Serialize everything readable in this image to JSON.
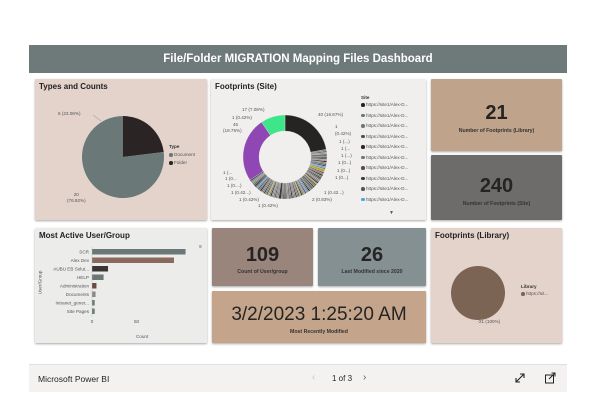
{
  "dashboard": {
    "title": "File/Folder MIGRATION Mapping Files Dashboard"
  },
  "types_card": {
    "title": "Types and Counts",
    "legend_title": "Type",
    "legend_items": [
      {
        "label": "Document",
        "color": "#6b7878"
      },
      {
        "label": "Folder",
        "color": "#2b2424"
      }
    ],
    "folder_label": "6 (23.08%)",
    "document_label": "20\n(76.92%)"
  },
  "footprints_site_card": {
    "title": "Footprints (Site)",
    "legend_title": "Site",
    "legend_items": [
      "https://site1/Alex-D...",
      "https://site1/Alex-D...",
      "https://site1/Alex-D...",
      "https://site1/Alex-D...",
      "https://site1/Alex-D...",
      "https://site1/Alex-D...",
      "https://site1/Alex-D...",
      "https://site1/Alex-D...",
      "https://site1/Alex-D...",
      "https://site1/Alex-D..."
    ],
    "legend_colors": [
      "#252423",
      "#6b7878",
      "#6b7878",
      "#5a4a4a",
      "#2b2424",
      "#6b7878",
      "#5a4a4a",
      "#3a3a3a",
      "#555555",
      "#4aa3df"
    ],
    "labels": {
      "top_a": "17 (7.08%)",
      "top_b": "1 (0.42%)",
      "left_a": "45",
      "left_b": "(18.75%)",
      "right_a": "40 (16.67%)",
      "right_b": "1",
      "right_c": "(0.42%)",
      "right_d": "1 (...)",
      "right_e": "1 (...",
      "bottom_a": "1 (0.42%)",
      "bottom_b": "2 (0.83%)",
      "bottom_c": "1 (0.42...)",
      "bottom_d": "1 (0.42%)",
      "left_c": "1 (...",
      "left_d": "1 (0...",
      "left_e": "1 (0....)",
      "right_f": "1 (...)",
      "right_g": "1 (0...)",
      "right_h": "1 (0...)",
      "right_i": "1 (0...)",
      "right_j": "1 (0.42...)"
    }
  },
  "kpi_library": {
    "value": "21",
    "caption": "Number of Footprints (Library)",
    "color": "#bfa38b"
  },
  "kpi_site": {
    "value": "240",
    "caption": "Number of Footprints (Site)",
    "color": "#6e6c6a"
  },
  "most_active_card": {
    "title": "Most Active User/Group",
    "y_axis_label": "User/Group",
    "x_axis_label": "Count",
    "x_ticks": [
      "0",
      "50"
    ],
    "bars": [
      {
        "label": "SCR",
        "value": 105,
        "color": "#6b7878"
      },
      {
        "label": "Alex Dev",
        "value": 92,
        "color": "#8a6a5e"
      },
      {
        "label": "AUBU EB Solut...",
        "value": 18,
        "color": "#3a3433"
      },
      {
        "label": "HELP",
        "value": 13,
        "color": "#6b7878"
      },
      {
        "label": "Administration",
        "value": 5,
        "color": "#6b4a42"
      },
      {
        "label": "Documents",
        "value": 4,
        "color": "#8a8a8a"
      },
      {
        "label": "Intranet_gener...",
        "value": 3,
        "color": "#6b7878"
      },
      {
        "label": "Site Pages",
        "value": 3,
        "color": "#6b7878"
      }
    ],
    "scroll_mark": "≡"
  },
  "kpi_users": {
    "value": "109",
    "caption": "Count of User/group",
    "color": "#9a857d"
  },
  "kpi_modified": {
    "value": "26",
    "caption": "Last Modified since 2020",
    "color": "#849092"
  },
  "kpi_recent": {
    "value": "3/2/2023 1:25:20 AM",
    "caption": "Most Recently Modified",
    "color": "#c4a58b"
  },
  "footprints_library_card": {
    "title": "Footprints (Library)",
    "legend_title": "Library",
    "legend_item": "https://sit...",
    "slice_label": "21 (100%)",
    "color": "#7b6454"
  },
  "footer": {
    "brand": "Microsoft Power BI",
    "pager": "1 of 3",
    "prev": "‹",
    "next": "›"
  },
  "chart_data": [
    {
      "type": "pie",
      "title": "Types and Counts",
      "categories": [
        "Document",
        "Folder"
      ],
      "values": [
        20,
        6
      ]
    },
    {
      "type": "bar",
      "title": "Most Active User/Group",
      "categories": [
        "SCR",
        "Alex Dev",
        "AUBU EB Solut...",
        "HELP",
        "Administration",
        "Documents",
        "Intranet_gener...",
        "Site Pages"
      ],
      "values": [
        105,
        92,
        18,
        13,
        5,
        4,
        3,
        3
      ],
      "xlabel": "Count",
      "ylabel": "User/Group",
      "xlim": [
        0,
        110
      ]
    },
    {
      "type": "pie",
      "title": "Footprints (Library)",
      "categories": [
        "https://sit..."
      ],
      "values": [
        21
      ]
    }
  ]
}
